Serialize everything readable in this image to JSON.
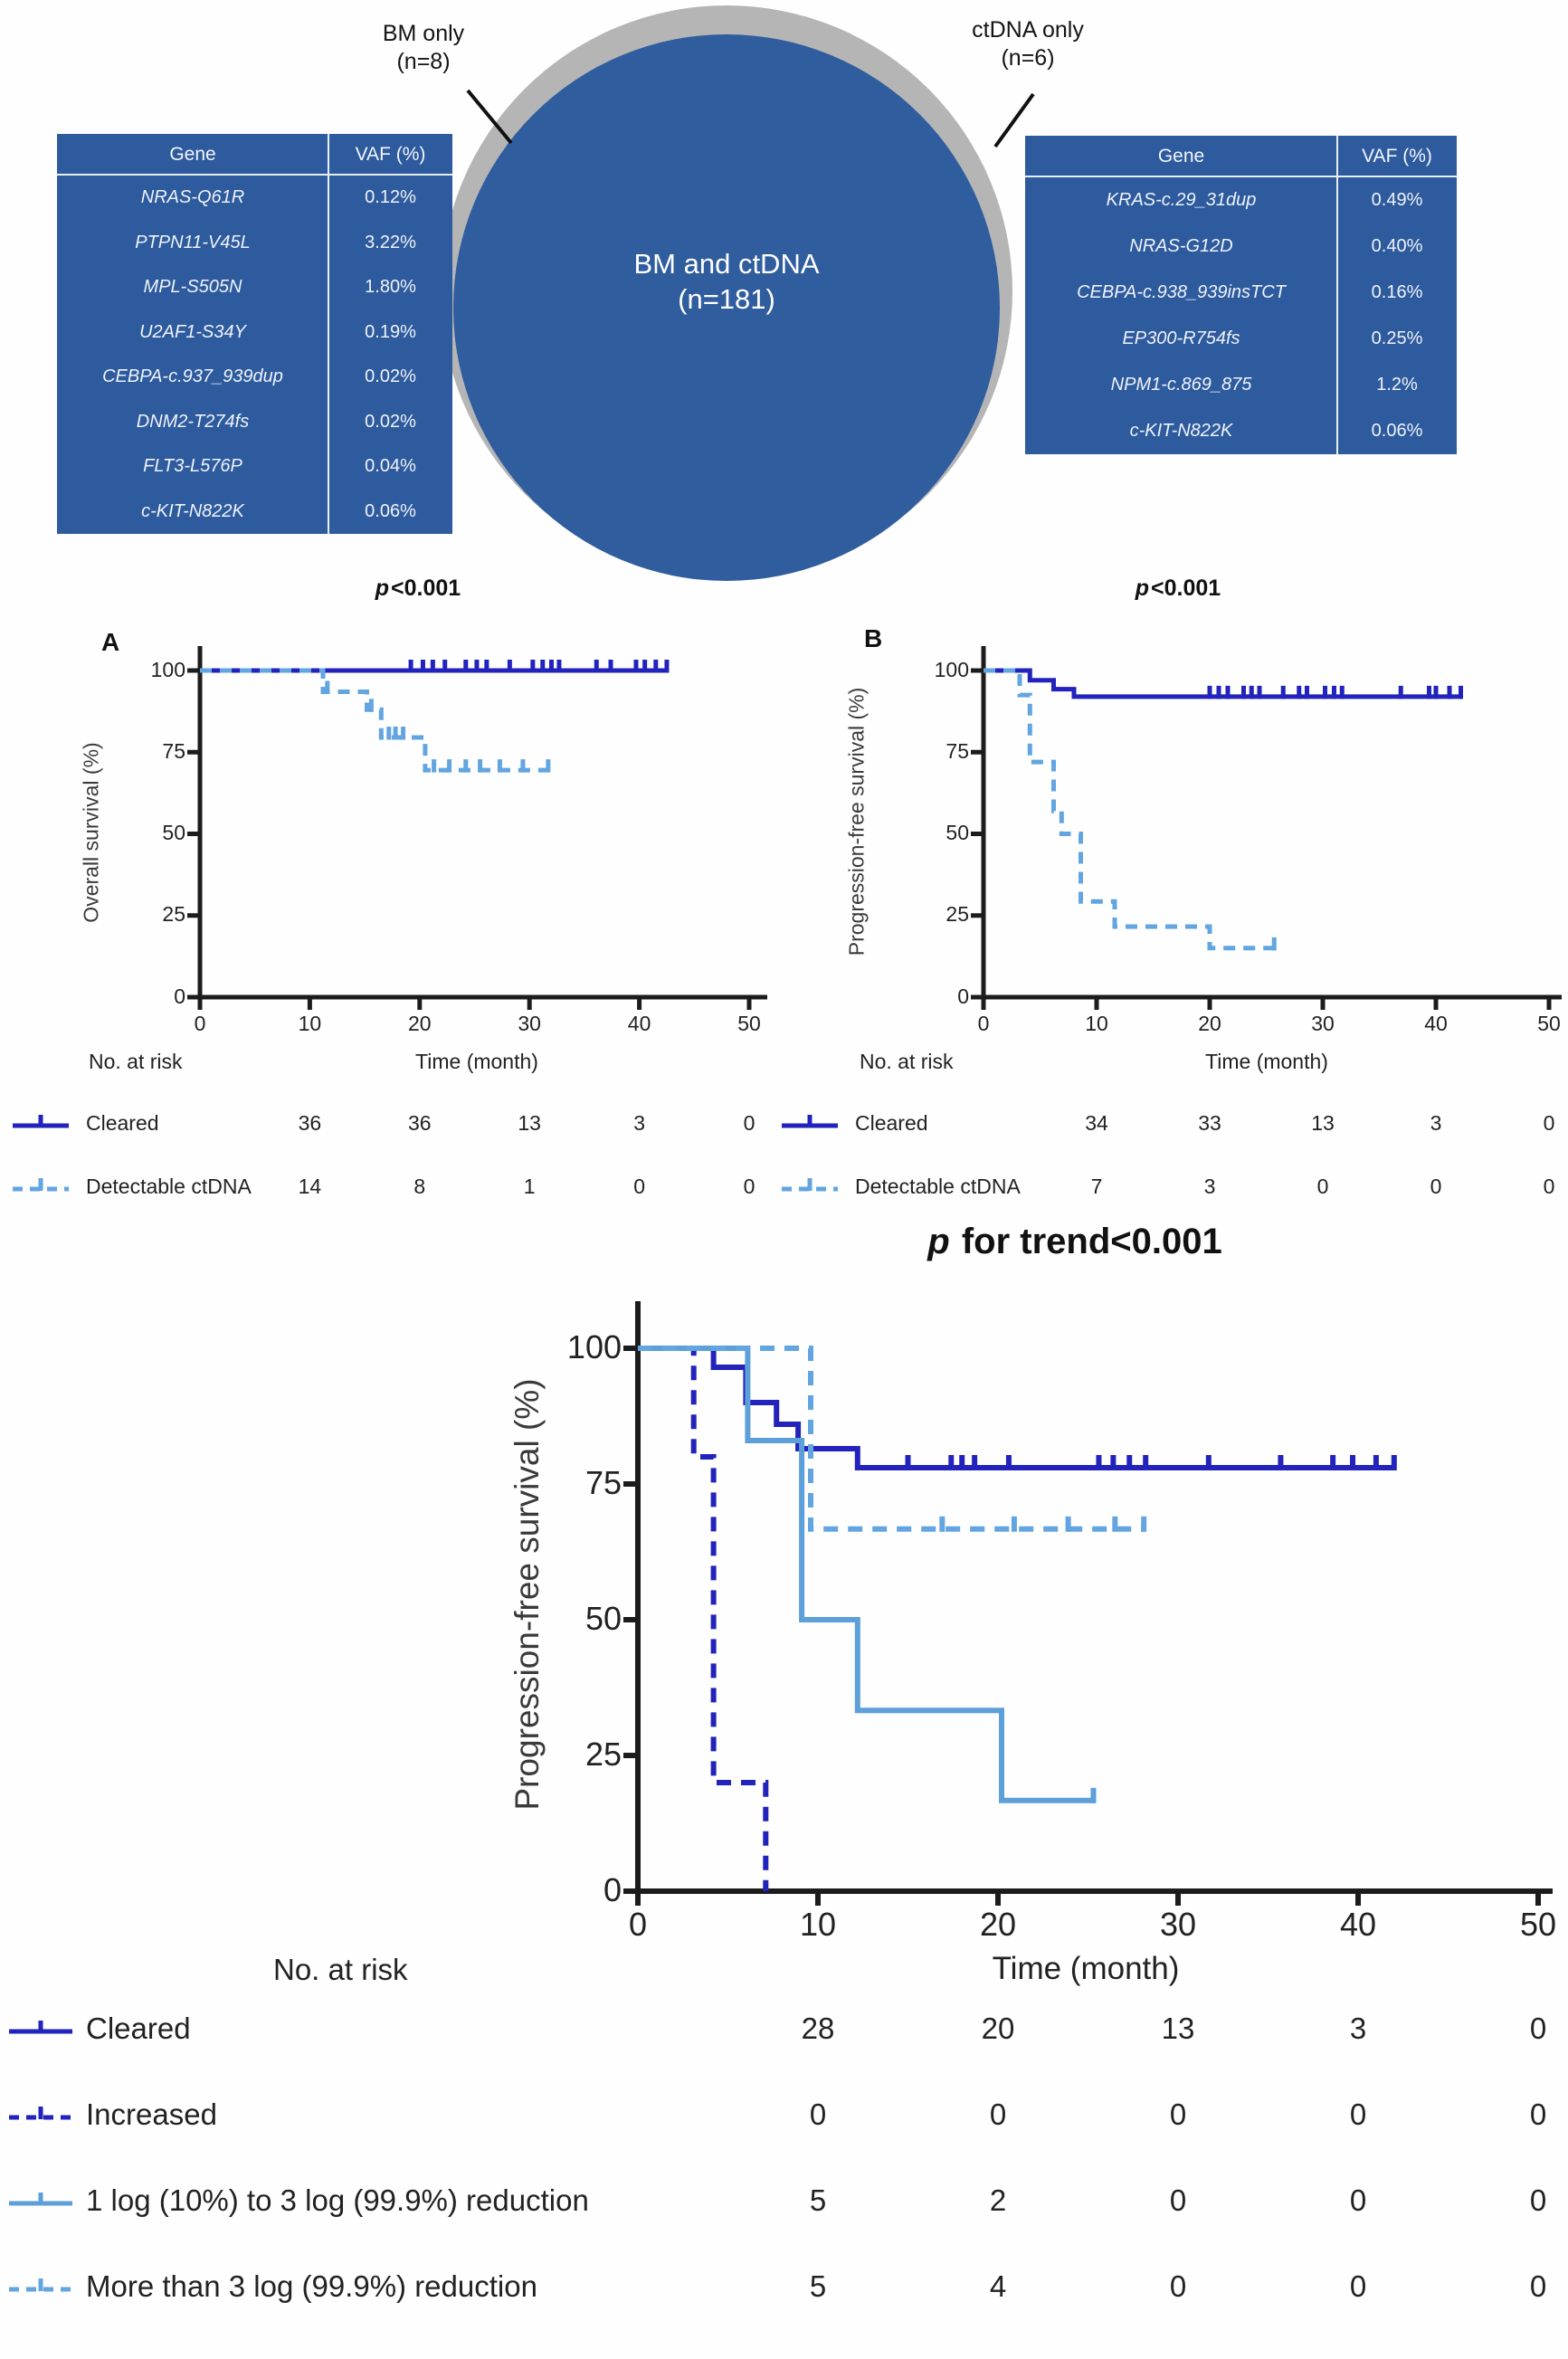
{
  "colors": {
    "table_blue": "#2e5b9e",
    "circle_gray": "#b5b5b5",
    "circle_blue": "#2f5d9e",
    "navy": "#2222bc",
    "light_blue": "#5d9fd8",
    "light_blue_dash": "#62a5e0",
    "axis": "#1c1c1c",
    "text": "#1a1a1a",
    "table_text": "#eef2f9"
  },
  "venn": {
    "center_line1": "BM and ctDNA",
    "center_line2": "(n=181)",
    "left_callout_line1": "BM only",
    "left_callout_line2": "(n=8)",
    "right_callout_line1": "ctDNA only",
    "right_callout_line2": "(n=6)",
    "tables": [
      {
        "headers": [
          "Gene",
          "VAF (%)"
        ],
        "rows": [
          [
            "NRAS-Q61R",
            "0.12%"
          ],
          [
            "PTPN11-V45L",
            "3.22%"
          ],
          [
            "MPL-S505N",
            "1.80%"
          ],
          [
            "U2AF1-S34Y",
            "0.19%"
          ],
          [
            "CEBPA-c.937_939dup",
            "0.02%"
          ],
          [
            "DNM2-T274fs",
            "0.02%"
          ],
          [
            "FLT3-L576P",
            "0.04%"
          ],
          [
            "c-KIT-N822K",
            "0.06%"
          ]
        ]
      },
      {
        "headers": [
          "Gene",
          "VAF (%)"
        ],
        "rows": [
          [
            "KRAS-c.29_31dup",
            "0.49%"
          ],
          [
            "NRAS-G12D",
            "0.40%"
          ],
          [
            "CEBPA-c.938_939insTCT",
            "0.16%"
          ],
          [
            "EP300-R754fs",
            "0.25%"
          ],
          [
            "NPM1-c.869_875",
            "1.2%"
          ],
          [
            "c-KIT-N822K",
            "0.06%"
          ]
        ]
      }
    ]
  },
  "chart_data": [
    {
      "id": "A",
      "type": "line",
      "panel_letter": "A",
      "title_prefix": "p",
      "title_rest": "<0.001",
      "ylabel": "Overall survival (%)",
      "xlabel": "Time (month)",
      "no_at_risk_label": "No. at risk",
      "xlim": [
        0,
        50
      ],
      "ylim": [
        0,
        100
      ],
      "xticks": [
        0,
        10,
        20,
        30,
        40,
        50
      ],
      "yticks": [
        0,
        25,
        50,
        75,
        100
      ],
      "series": [
        {
          "name": "Cleared",
          "style": "solid",
          "color_key": "navy",
          "points": [
            [
              0,
              100
            ],
            [
              42.6,
              100
            ]
          ],
          "censors": [
            [
              19.2,
              100
            ],
            [
              20.3,
              100
            ],
            [
              21.2,
              100
            ],
            [
              22.3,
              100
            ],
            [
              24.2,
              100
            ],
            [
              25.2,
              100
            ],
            [
              26.1,
              100
            ],
            [
              28.2,
              100
            ],
            [
              30.3,
              100
            ],
            [
              31.2,
              100
            ],
            [
              32.0,
              100
            ],
            [
              32.7,
              100
            ],
            [
              36.1,
              100
            ],
            [
              37.4,
              100
            ],
            [
              39.7,
              100
            ],
            [
              40.5,
              100
            ],
            [
              41.5,
              100
            ],
            [
              42.5,
              100
            ]
          ]
        },
        {
          "name": "Detectable ctDNA",
          "style": "dashed",
          "color_key": "light_blue_dash",
          "points": [
            [
              0,
              100
            ],
            [
              11.2,
              100
            ],
            [
              11.2,
              93.5
            ],
            [
              15.2,
              93.5
            ],
            [
              15.2,
              88
            ],
            [
              16.5,
              88
            ],
            [
              16.5,
              79.5
            ],
            [
              20.5,
              79.5
            ],
            [
              20.5,
              69.5
            ],
            [
              31.8,
              69.5
            ]
          ],
          "censors": [
            [
              11.6,
              93.5
            ],
            [
              15.6,
              88
            ],
            [
              17.2,
              79.5
            ],
            [
              17.8,
              79.5
            ],
            [
              18.5,
              79.5
            ],
            [
              21.3,
              69.5
            ],
            [
              22.7,
              69.5
            ],
            [
              24.2,
              69.5
            ],
            [
              25.5,
              69.5
            ],
            [
              27.3,
              69.5
            ],
            [
              29.4,
              69.5
            ],
            [
              31.7,
              69.5
            ]
          ]
        }
      ],
      "risk_rows": [
        {
          "label": "Cleared",
          "style": "solid",
          "color_key": "navy",
          "values": [
            "36",
            "36",
            "13",
            "3",
            "0"
          ]
        },
        {
          "label": "Detectable ctDNA",
          "style": "dashed",
          "color_key": "light_blue_dash",
          "values": [
            "14",
            "8",
            "1",
            "0",
            "0"
          ]
        }
      ]
    },
    {
      "id": "B",
      "type": "line",
      "panel_letter": "B",
      "title_prefix": "p",
      "title_rest": "<0.001",
      "ylabel": "Progression-free survival (%)",
      "xlabel": "Time (month)",
      "no_at_risk_label": "No. at risk",
      "xlim": [
        0,
        50
      ],
      "ylim": [
        0,
        100
      ],
      "xticks": [
        0,
        10,
        20,
        30,
        40,
        50
      ],
      "yticks": [
        0,
        25,
        50,
        75,
        100
      ],
      "series": [
        {
          "name": "Cleared",
          "style": "solid",
          "color_key": "navy",
          "points": [
            [
              0,
              100
            ],
            [
              4.1,
              100
            ],
            [
              4.1,
              97
            ],
            [
              6.2,
              97
            ],
            [
              6.2,
              94.3
            ],
            [
              8.0,
              94.3
            ],
            [
              8.0,
              92
            ],
            [
              42.3,
              92
            ]
          ],
          "censors": [
            [
              20.0,
              92
            ],
            [
              20.8,
              92
            ],
            [
              21.6,
              92
            ],
            [
              23.0,
              92
            ],
            [
              23.7,
              92
            ],
            [
              24.4,
              92
            ],
            [
              26.5,
              92
            ],
            [
              27.9,
              92
            ],
            [
              28.6,
              92
            ],
            [
              30.2,
              92
            ],
            [
              31.0,
              92
            ],
            [
              31.7,
              92
            ],
            [
              36.9,
              92
            ],
            [
              39.4,
              92
            ],
            [
              40.0,
              92
            ],
            [
              41.2,
              92
            ],
            [
              42.2,
              92
            ]
          ]
        },
        {
          "name": "Detectable ctDNA",
          "style": "dashed",
          "color_key": "light_blue_dash",
          "points": [
            [
              0,
              100
            ],
            [
              3.2,
              100
            ],
            [
              3.2,
              92.5
            ],
            [
              4.1,
              92.5
            ],
            [
              4.1,
              72
            ],
            [
              6.2,
              72
            ],
            [
              6.2,
              57
            ],
            [
              6.9,
              57
            ],
            [
              6.9,
              50
            ],
            [
              8.6,
              50
            ],
            [
              8.6,
              29.3
            ],
            [
              11.6,
              29.3
            ],
            [
              11.6,
              21.6
            ],
            [
              20.0,
              21.6
            ],
            [
              20.0,
              15
            ],
            [
              25.8,
              15
            ]
          ],
          "censors": [
            [
              25.7,
              15
            ]
          ]
        }
      ],
      "risk_rows": [
        {
          "label": "Cleared",
          "style": "solid",
          "color_key": "navy",
          "values": [
            "34",
            "33",
            "13",
            "3",
            "0"
          ]
        },
        {
          "label": "Detectable ctDNA",
          "style": "dashed",
          "color_key": "light_blue_dash",
          "values": [
            "7",
            "3",
            "0",
            "0",
            "0"
          ]
        }
      ]
    },
    {
      "id": "trend",
      "type": "line",
      "panel_letter": "",
      "title_prefix": "p",
      "title_rest": " for trend<0.001",
      "ylabel": "Progression-free survival (%)",
      "xlabel": "Time (month)",
      "no_at_risk_label": "No. at risk",
      "xlim": [
        0,
        50
      ],
      "ylim": [
        0,
        100
      ],
      "xticks": [
        0,
        10,
        20,
        30,
        40,
        50
      ],
      "yticks": [
        0,
        25,
        50,
        75,
        100
      ],
      "series": [
        {
          "name": "Cleared",
          "style": "solid",
          "color_key": "navy",
          "points": [
            [
              0,
              100
            ],
            [
              4.2,
              100
            ],
            [
              4.2,
              96.5
            ],
            [
              6.0,
              96.5
            ],
            [
              6.0,
              90
            ],
            [
              7.7,
              90
            ],
            [
              7.7,
              86
            ],
            [
              8.9,
              86
            ],
            [
              8.9,
              81.5
            ],
            [
              12.2,
              81.5
            ],
            [
              12.2,
              78
            ],
            [
              42,
              78
            ]
          ],
          "censors": [
            [
              15.0,
              78
            ],
            [
              17.4,
              78
            ],
            [
              18.0,
              78
            ],
            [
              18.7,
              78
            ],
            [
              20.6,
              78
            ],
            [
              25.6,
              78
            ],
            [
              26.4,
              78
            ],
            [
              27.3,
              78
            ],
            [
              28.2,
              78
            ],
            [
              31.7,
              78
            ],
            [
              35.7,
              78
            ],
            [
              38.6,
              78
            ],
            [
              39.7,
              78
            ],
            [
              41.0,
              78
            ],
            [
              42.0,
              78
            ]
          ]
        },
        {
          "name": "Increased",
          "style": "dashed",
          "color_key": "navy",
          "points": [
            [
              0,
              100
            ],
            [
              3.1,
              100
            ],
            [
              3.1,
              80
            ],
            [
              4.2,
              80
            ],
            [
              4.2,
              20
            ],
            [
              7.1,
              20
            ],
            [
              7.1,
              0
            ]
          ],
          "censors": []
        },
        {
          "name": "1 log (10%) to 3 log (99.9%) reduction",
          "style": "solid",
          "color_key": "light_blue",
          "points": [
            [
              0,
              100
            ],
            [
              6.1,
              100
            ],
            [
              6.1,
              83
            ],
            [
              9.1,
              83
            ],
            [
              9.1,
              50
            ],
            [
              12.2,
              50
            ],
            [
              12.2,
              33.3
            ],
            [
              20.2,
              33.3
            ],
            [
              20.2,
              16.7
            ],
            [
              25.4,
              16.7
            ]
          ],
          "censors": [
            [
              25.3,
              16.7
            ]
          ]
        },
        {
          "name": "More than 3 log (99.9%) reduction",
          "style": "dashed",
          "color_key": "light_blue_dash",
          "points": [
            [
              0,
              100
            ],
            [
              9.6,
              100
            ],
            [
              9.6,
              66.7
            ],
            [
              28.2,
              66.7
            ]
          ],
          "censors": [
            [
              16.9,
              66.7
            ],
            [
              20.9,
              66.7
            ],
            [
              23.9,
              66.7
            ],
            [
              26.5,
              66.7
            ],
            [
              28.1,
              66.7
            ]
          ]
        }
      ],
      "risk_rows": [
        {
          "label": "Cleared",
          "style": "solid",
          "color_key": "navy",
          "values": [
            "28",
            "20",
            "13",
            "3",
            "0"
          ]
        },
        {
          "label": "Increased",
          "style": "dashed",
          "color_key": "navy",
          "values": [
            "0",
            "0",
            "0",
            "0",
            "0"
          ]
        },
        {
          "label": "1 log (10%) to 3 log (99.9%) reduction",
          "style": "solid",
          "color_key": "light_blue",
          "values": [
            "5",
            "2",
            "0",
            "0",
            "0"
          ]
        },
        {
          "label": "More than 3 log (99.9%) reduction",
          "style": "dashed",
          "color_key": "light_blue_dash",
          "values": [
            "5",
            "4",
            "0",
            "0",
            "0"
          ]
        }
      ]
    }
  ]
}
